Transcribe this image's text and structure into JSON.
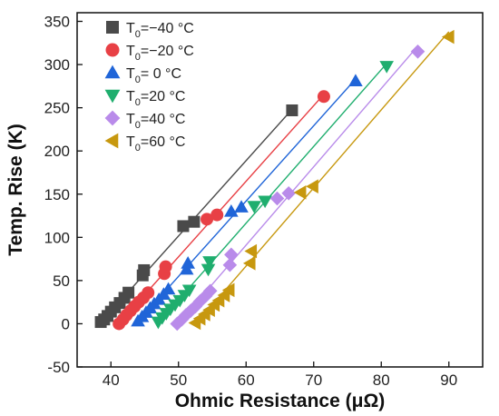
{
  "chart_data": {
    "type": "scatter",
    "xlabel": "Ohmic Resistance (μΩ)",
    "ylabel": "Temp. Rise (K)",
    "xlim": [
      35,
      95
    ],
    "ylim": [
      -50,
      360
    ],
    "xticks": [
      40,
      50,
      60,
      70,
      80,
      90
    ],
    "yticks": [
      -50,
      0,
      50,
      100,
      150,
      200,
      250,
      300,
      350
    ],
    "legend_position": "top-left",
    "series": [
      {
        "name_prefix": "T",
        "name_sub": "0",
        "name_suffix": "=−40 °C",
        "marker": "square",
        "color": "#4a4a4a",
        "x": [
          38.5,
          39.0,
          39.5,
          40.0,
          40.6,
          41.3,
          42.0,
          42.6,
          44.7,
          44.9,
          50.7,
          52.3,
          66.8
        ],
        "y": [
          2,
          5,
          9,
          14,
          19,
          24,
          30,
          36,
          56,
          62,
          113,
          118,
          247
        ]
      },
      {
        "name_prefix": "T",
        "name_sub": "0",
        "name_suffix": "=−20 °C",
        "marker": "circle",
        "color": "#e84045",
        "x": [
          41.2,
          41.8,
          42.3,
          42.9,
          43.5,
          44.1,
          44.8,
          45.5,
          47.9,
          48.1,
          54.2,
          55.7,
          71.5
        ],
        "y": [
          0,
          5,
          10,
          15,
          20,
          25,
          30,
          36,
          58,
          66,
          121,
          126,
          263
        ]
      },
      {
        "name_prefix": "T",
        "name_sub": "0",
        "name_suffix": "=  0 °C",
        "marker": "triangle-up",
        "color": "#2065d8",
        "x": [
          44.0,
          44.6,
          45.2,
          45.8,
          46.4,
          47.1,
          47.8,
          48.5,
          51.2,
          51.4,
          57.8,
          59.3,
          76.2
        ],
        "y": [
          3,
          8,
          13,
          18,
          23,
          28,
          34,
          40,
          63,
          70,
          130,
          135,
          281
        ]
      },
      {
        "name_prefix": "T",
        "name_sub": "0",
        "name_suffix": "=20 °C",
        "marker": "triangle-down",
        "color": "#1fae6e",
        "x": [
          47.0,
          47.6,
          48.2,
          48.8,
          49.5,
          50.2,
          50.9,
          51.6,
          54.4,
          54.6,
          61.2,
          62.8,
          80.8
        ],
        "y": [
          2,
          7,
          12,
          17,
          22,
          27,
          33,
          39,
          63,
          72,
          136,
          142,
          298
        ]
      },
      {
        "name_prefix": "T",
        "name_sub": "0",
        "name_suffix": "=40 °C",
        "marker": "diamond",
        "color": "#b98bea",
        "x": [
          49.8,
          50.5,
          51.1,
          51.8,
          52.5,
          53.2,
          54.0,
          54.7,
          57.6,
          57.8,
          64.6,
          66.3,
          85.4
        ],
        "y": [
          0,
          5,
          10,
          15,
          20,
          26,
          32,
          38,
          68,
          80,
          145,
          151,
          315
        ]
      },
      {
        "name_prefix": "T",
        "name_sub": "0",
        "name_suffix": "=60 °C",
        "marker": "triangle-left",
        "color": "#c7980f",
        "x": [
          52.5,
          53.2,
          53.9,
          54.6,
          55.3,
          56.0,
          56.8,
          57.5,
          60.6,
          60.8,
          68.1,
          69.9,
          90.0
        ],
        "y": [
          1,
          6,
          11,
          16,
          22,
          27,
          33,
          39,
          70,
          84,
          152,
          159,
          332
        ]
      }
    ]
  }
}
